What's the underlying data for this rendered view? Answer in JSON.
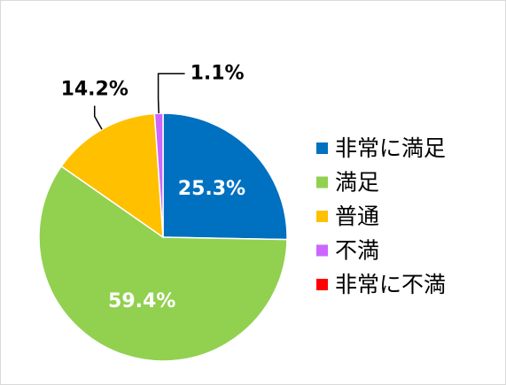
{
  "chart_data": {
    "type": "pie",
    "categories": [
      "非常に満足",
      "満足",
      "普通",
      "不満",
      "非常に不満"
    ],
    "values": [
      25.3,
      59.4,
      14.2,
      1.1,
      0
    ],
    "value_labels": [
      "25.3%",
      "59.4%",
      "14.2%",
      "1.1%",
      null
    ],
    "colors": [
      "#0070c0",
      "#92d050",
      "#ffc000",
      "#cc66ff",
      "#ff0000"
    ]
  }
}
